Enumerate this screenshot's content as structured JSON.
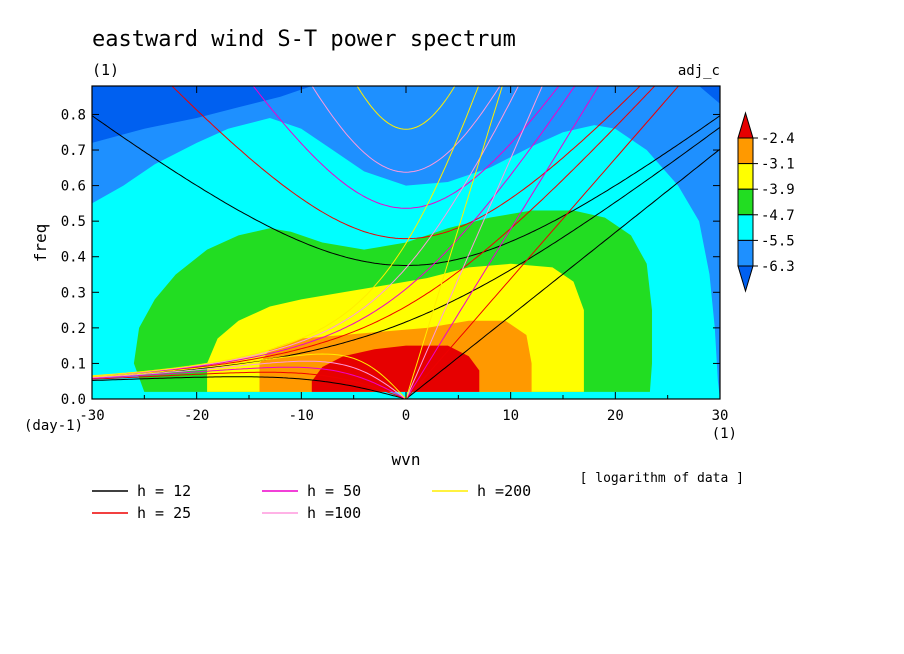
{
  "chart_data": {
    "type": "heatmap",
    "title": "eastward wind S-T power spectrum",
    "subtitle_left": "(1)",
    "subtitle_right": "adj_c",
    "xlabel": "wvn",
    "x_unit": "(1)",
    "ylabel": "freq",
    "y_unit": "(day-1)",
    "note": "[ logarithm of data ]",
    "xlim": [
      -30,
      30
    ],
    "ylim": [
      0,
      0.88
    ],
    "x_ticks": [
      -30,
      -20,
      -10,
      0,
      10,
      20,
      30
    ],
    "y_ticks": [
      0.0,
      0.1,
      0.2,
      0.3,
      0.4,
      0.5,
      0.6,
      0.7,
      0.8
    ],
    "colorbar": {
      "labels": [
        "-2.4",
        "-3.1",
        "-3.9",
        "-4.7",
        "-5.5",
        "-6.3"
      ],
      "colors": [
        "#e60000",
        "#ff9900",
        "#ffff00",
        "#22dd22",
        "#00ffff",
        "#1e90ff",
        "#0060f0"
      ]
    },
    "dispersion_curves": [
      {
        "label": "h = 12",
        "h": 12,
        "color": "#000000"
      },
      {
        "label": "h = 25",
        "h": 25,
        "color": "#ee0000"
      },
      {
        "label": "h = 50",
        "h": 50,
        "color": "#ee00cc"
      },
      {
        "label": "h =100",
        "h": 100,
        "color": "#ff99dd"
      },
      {
        "label": "h =200",
        "h": 200,
        "color": "#ffee00"
      }
    ],
    "field_regions": [
      {
        "level": 6,
        "polygon": [
          [
            -30,
            0.88
          ],
          [
            -30,
            0
          ],
          [
            30,
            0
          ],
          [
            30,
            0.88
          ]
        ]
      },
      {
        "level": 5,
        "polygon": [
          [
            -30,
            0
          ],
          [
            -30,
            0.72
          ],
          [
            -25,
            0.76
          ],
          [
            -20,
            0.79
          ],
          [
            -16,
            0.82
          ],
          [
            -12,
            0.85
          ],
          [
            -9,
            0.88
          ],
          [
            28,
            0.88
          ],
          [
            30,
            0.83
          ],
          [
            30,
            0
          ]
        ]
      },
      {
        "level": 4,
        "polygon": [
          [
            -30,
            0
          ],
          [
            -30,
            0.55
          ],
          [
            -27,
            0.6
          ],
          [
            -24,
            0.66
          ],
          [
            -20,
            0.72
          ],
          [
            -17,
            0.76
          ],
          [
            -13,
            0.79
          ],
          [
            -10,
            0.76
          ],
          [
            -7,
            0.7
          ],
          [
            -4,
            0.64
          ],
          [
            0,
            0.6
          ],
          [
            4,
            0.61
          ],
          [
            8,
            0.65
          ],
          [
            12,
            0.71
          ],
          [
            15,
            0.75
          ],
          [
            18,
            0.77
          ],
          [
            20,
            0.76
          ],
          [
            23,
            0.7
          ],
          [
            26,
            0.6
          ],
          [
            28,
            0.5
          ],
          [
            29,
            0.35
          ],
          [
            29.5,
            0.2
          ],
          [
            29.8,
            0.05
          ],
          [
            30,
            0
          ]
        ]
      },
      {
        "level": 3,
        "polygon": [
          [
            -25,
            0.02
          ],
          [
            -26,
            0.1
          ],
          [
            -25.5,
            0.2
          ],
          [
            -24,
            0.28
          ],
          [
            -22,
            0.35
          ],
          [
            -19,
            0.42
          ],
          [
            -16,
            0.46
          ],
          [
            -13,
            0.48
          ],
          [
            -11,
            0.47
          ],
          [
            -8,
            0.44
          ],
          [
            -4,
            0.42
          ],
          [
            0,
            0.44
          ],
          [
            4,
            0.48
          ],
          [
            8,
            0.51
          ],
          [
            12,
            0.53
          ],
          [
            16,
            0.53
          ],
          [
            19,
            0.51
          ],
          [
            21.5,
            0.46
          ],
          [
            23,
            0.38
          ],
          [
            23.5,
            0.25
          ],
          [
            23.5,
            0.1
          ],
          [
            23.3,
            0.02
          ]
        ]
      },
      {
        "level": 2,
        "polygon": [
          [
            -19,
            0.02
          ],
          [
            -19,
            0.1
          ],
          [
            -18,
            0.17
          ],
          [
            -16,
            0.22
          ],
          [
            -13,
            0.26
          ],
          [
            -10,
            0.28
          ],
          [
            -6,
            0.3
          ],
          [
            -2,
            0.32
          ],
          [
            2,
            0.34
          ],
          [
            6,
            0.37
          ],
          [
            10,
            0.38
          ],
          [
            14,
            0.37
          ],
          [
            16,
            0.33
          ],
          [
            17,
            0.25
          ],
          [
            17,
            0.1
          ],
          [
            17,
            0.02
          ]
        ]
      },
      {
        "level": 1,
        "polygon": [
          [
            -14,
            0.02
          ],
          [
            -14,
            0.1
          ],
          [
            -13,
            0.14
          ],
          [
            -10,
            0.17
          ],
          [
            -6,
            0.18
          ],
          [
            -2,
            0.19
          ],
          [
            2,
            0.2
          ],
          [
            6,
            0.22
          ],
          [
            9.5,
            0.22
          ],
          [
            11.5,
            0.18
          ],
          [
            12,
            0.1
          ],
          [
            12,
            0.02
          ]
        ]
      },
      {
        "level": 0,
        "polygon": [
          [
            -9,
            0.02
          ],
          [
            -9,
            0.05
          ],
          [
            -8,
            0.09
          ],
          [
            -6,
            0.12
          ],
          [
            -3,
            0.14
          ],
          [
            0,
            0.15
          ],
          [
            4,
            0.15
          ],
          [
            6,
            0.12
          ],
          [
            7,
            0.08
          ],
          [
            7,
            0.04
          ],
          [
            7,
            0.02
          ]
        ]
      }
    ]
  }
}
